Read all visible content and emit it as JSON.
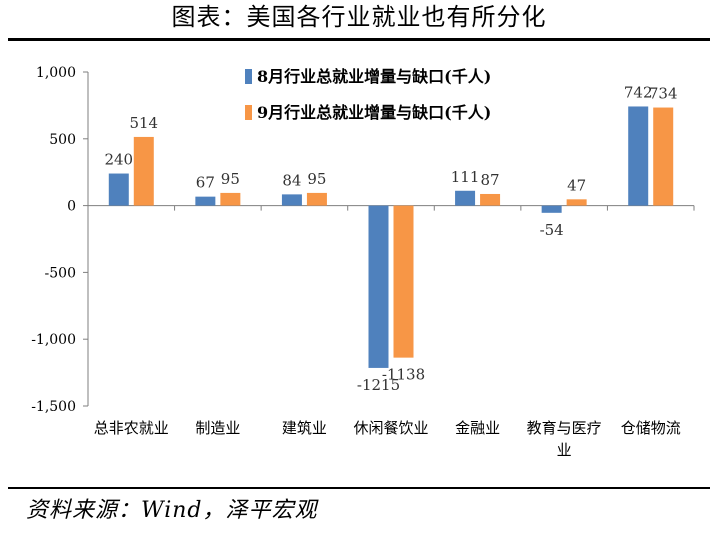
{
  "title": "图表：美国各行业就业也有所分化",
  "source": "资料来源：Wind，泽平宏观",
  "colors": {
    "series1": "#4f81bd",
    "series2": "#f79646",
    "axis": "#7f7f7f"
  },
  "chart_data": {
    "type": "bar",
    "categories": [
      "总非农就业",
      "制造业",
      "建筑业",
      "休闲餐饮业",
      "金融业",
      "教育与医疗业",
      "仓储物流"
    ],
    "series": [
      {
        "name": "8月行业总就业增量与缺口(千人)",
        "values": [
          240,
          67,
          84,
          -1215,
          111,
          -54,
          742
        ]
      },
      {
        "name": "9月行业总就业增量与缺口(千人)",
        "values": [
          514,
          95,
          95,
          -1138,
          87,
          47,
          734
        ]
      }
    ],
    "value_labels": [
      [
        "240",
        "67",
        "84",
        "-1215",
        "111",
        "-54",
        "742"
      ],
      [
        "514",
        "95",
        "95",
        "-1138",
        "87",
        "47",
        "734"
      ]
    ],
    "ylim": [
      -1500,
      1000
    ],
    "yticks": [
      1000,
      500,
      0,
      -500,
      -1000,
      -1500
    ],
    "ytick_labels": [
      "1,000",
      "500",
      "0",
      "-500",
      "-1,000",
      "-1,500"
    ],
    "legend_position": "top-center"
  }
}
